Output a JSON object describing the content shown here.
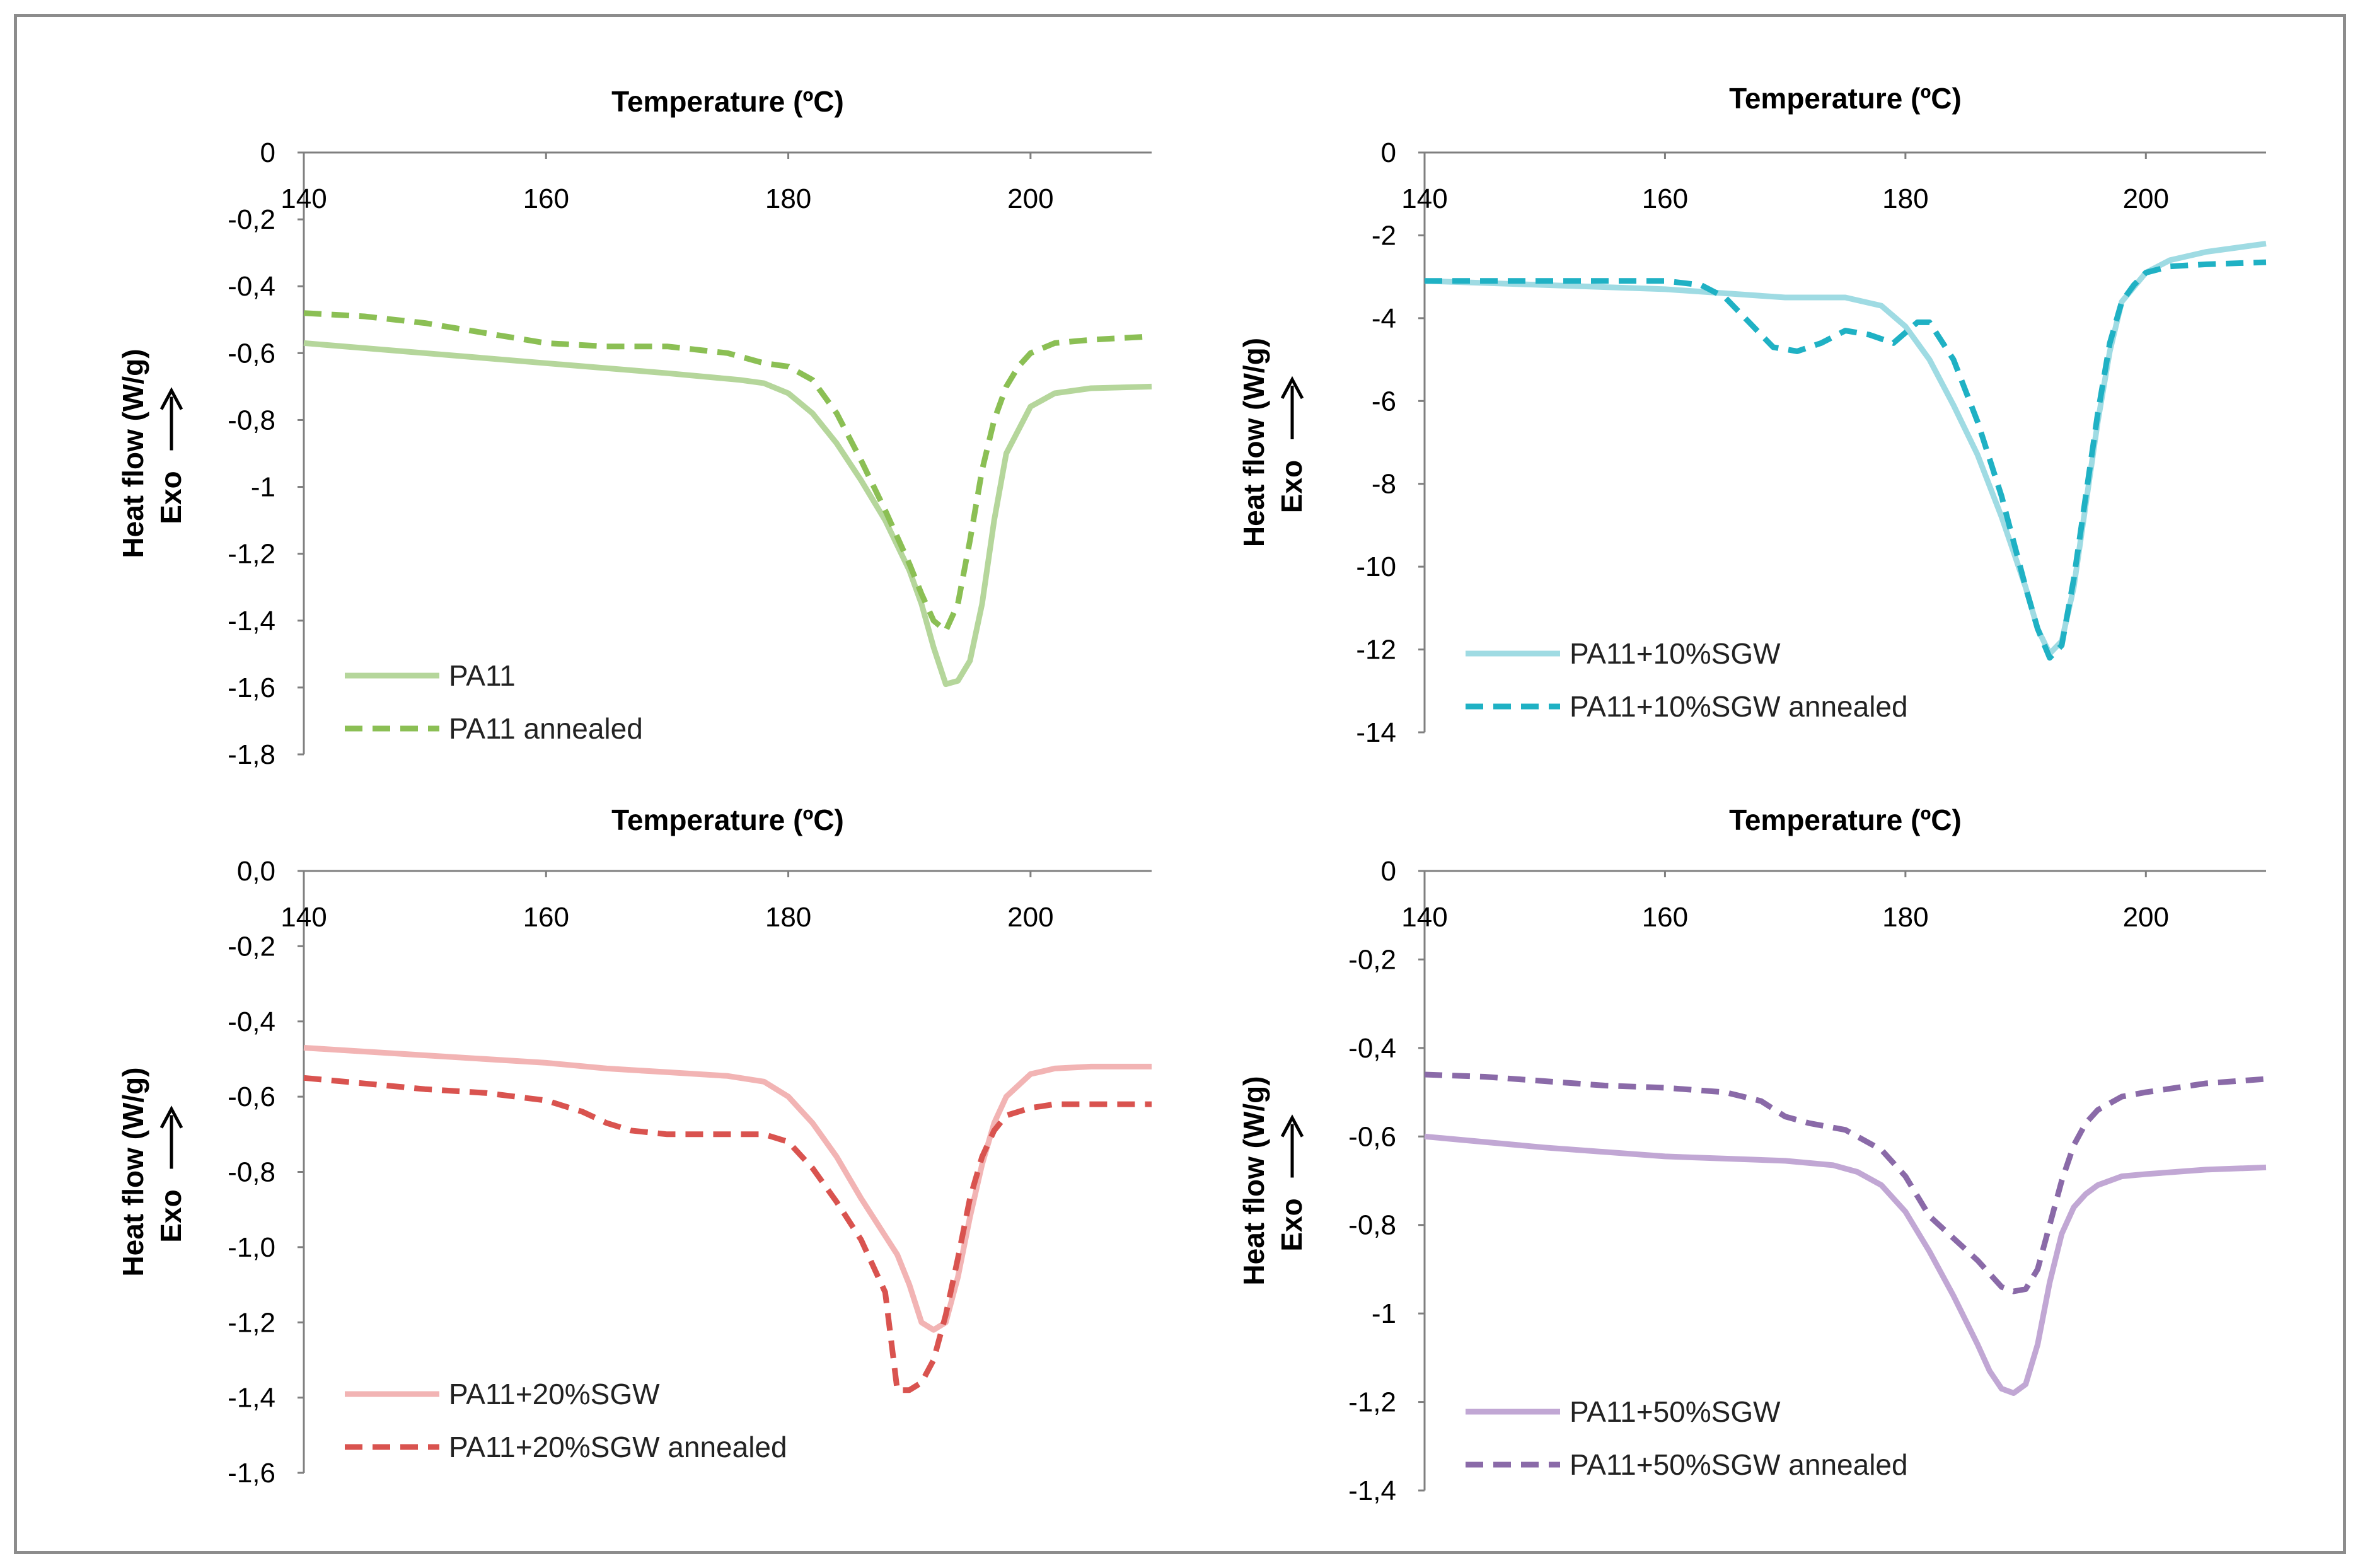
{
  "chart_data": [
    {
      "type": "line",
      "xlabel": "Temperature (ºC)",
      "ylabel": "Heat flow (W/g)",
      "ylabel_prefix": "Exo",
      "xlim": [
        140,
        210
      ],
      "ylim": [
        -1.8,
        0
      ],
      "xticks": [
        140,
        160,
        180,
        200
      ],
      "yticks": [
        0,
        -0.2,
        -0.4,
        -0.6,
        -0.8,
        -1,
        -1.2,
        -1.4,
        -1.6,
        -1.8
      ],
      "ytick_labels": [
        "0",
        "-0,2",
        "-0,4",
        "-0,6",
        "-0,8",
        "-1",
        "-1,2",
        "-1,4",
        "-1,6",
        "-1,8"
      ],
      "legend": "bottom-left",
      "series": [
        {
          "name": "PA11",
          "style": "solid",
          "color": "#b5d69b",
          "x": [
            140,
            150,
            160,
            170,
            176,
            178,
            180,
            182,
            184,
            186,
            188,
            190,
            191,
            192,
            193,
            194,
            195,
            196,
            197,
            198,
            200,
            202,
            205,
            210
          ],
          "y": [
            -0.57,
            -0.6,
            -0.63,
            -0.66,
            -0.68,
            -0.69,
            -0.72,
            -0.78,
            -0.87,
            -0.98,
            -1.1,
            -1.25,
            -1.35,
            -1.48,
            -1.59,
            -1.58,
            -1.52,
            -1.35,
            -1.1,
            -0.9,
            -0.76,
            -0.72,
            -0.705,
            -0.7
          ]
        },
        {
          "name": "PA11 annealed",
          "style": "dashed",
          "color": "#8bbf54",
          "x": [
            140,
            145,
            150,
            155,
            160,
            165,
            170,
            175,
            178,
            180,
            182,
            184,
            186,
            188,
            190,
            191,
            192,
            193,
            194,
            195,
            196,
            197,
            198,
            199,
            200,
            202,
            205,
            210
          ],
          "y": [
            -0.48,
            -0.49,
            -0.51,
            -0.54,
            -0.57,
            -0.58,
            -0.58,
            -0.6,
            -0.63,
            -0.64,
            -0.68,
            -0.78,
            -0.92,
            -1.07,
            -1.23,
            -1.32,
            -1.4,
            -1.43,
            -1.35,
            -1.16,
            -0.95,
            -0.8,
            -0.7,
            -0.64,
            -0.6,
            -0.57,
            -0.56,
            -0.55
          ]
        }
      ]
    },
    {
      "type": "line",
      "xlabel": "Temperature (ºC)",
      "ylabel": "Heat flow (W/g)",
      "ylabel_prefix": "Exo",
      "xlim": [
        140,
        210
      ],
      "ylim": [
        -14,
        0
      ],
      "xticks": [
        140,
        160,
        180,
        200
      ],
      "yticks": [
        0,
        -2,
        -4,
        -6,
        -8,
        -10,
        -12,
        -14
      ],
      "ytick_labels": [
        "0",
        "-2",
        "-4",
        "-6",
        "-8",
        "-10",
        "-12",
        "-14"
      ],
      "legend": "bottom-left",
      "series": [
        {
          "name": "PA11+10%SGW",
          "style": "solid",
          "color": "#9fdbe3",
          "x": [
            140,
            150,
            160,
            165,
            170,
            175,
            178,
            180,
            182,
            184,
            186,
            188,
            190,
            191,
            192,
            193,
            194,
            195,
            196,
            197,
            198,
            200,
            202,
            205,
            210
          ],
          "y": [
            -3.1,
            -3.2,
            -3.3,
            -3.4,
            -3.5,
            -3.5,
            -3.7,
            -4.2,
            -5.0,
            -6.1,
            -7.3,
            -8.8,
            -10.5,
            -11.5,
            -12.1,
            -11.8,
            -10.5,
            -8.5,
            -6.5,
            -4.8,
            -3.6,
            -2.9,
            -2.6,
            -2.4,
            -2.2
          ]
        },
        {
          "name": "PA11+10%SGW annealed",
          "style": "dashed",
          "color": "#1fb1c4",
          "x": [
            140,
            145,
            150,
            155,
            160,
            163,
            165,
            167,
            169,
            171,
            173,
            175,
            177,
            179,
            181,
            182,
            184,
            186,
            188,
            190,
            191,
            192,
            193,
            194,
            195,
            196,
            197,
            198,
            199,
            200,
            202,
            205,
            210
          ],
          "y": [
            -3.1,
            -3.1,
            -3.1,
            -3.1,
            -3.1,
            -3.2,
            -3.5,
            -4.1,
            -4.7,
            -4.8,
            -4.6,
            -4.3,
            -4.4,
            -4.6,
            -4.1,
            -4.1,
            -5.0,
            -6.5,
            -8.3,
            -10.5,
            -11.5,
            -12.2,
            -11.9,
            -10.3,
            -8.3,
            -6.3,
            -4.6,
            -3.6,
            -3.2,
            -2.9,
            -2.75,
            -2.7,
            -2.65
          ]
        }
      ]
    },
    {
      "type": "line",
      "xlabel": "Temperature (ºC)",
      "ylabel": "Heat flow (W/g)",
      "ylabel_prefix": "Exo",
      "xlim": [
        140,
        210
      ],
      "ylim": [
        -1.6,
        0
      ],
      "xticks": [
        140,
        160,
        180,
        200
      ],
      "yticks": [
        0,
        -0.2,
        -0.4,
        -0.6,
        -0.8,
        -1.0,
        -1.2,
        -1.4,
        -1.6
      ],
      "ytick_labels": [
        "0,0",
        "-0,2",
        "-0,4",
        "-0,6",
        "-0,8",
        "-1,0",
        "-1,2",
        "-1,4",
        "-1,6"
      ],
      "legend": "bottom-left",
      "series": [
        {
          "name": "PA11+20%SGW",
          "style": "solid",
          "color": "#f2b4b4",
          "x": [
            140,
            150,
            160,
            165,
            170,
            175,
            178,
            180,
            182,
            184,
            186,
            188,
            189,
            190,
            191,
            192,
            193,
            194,
            195,
            196,
            197,
            198,
            200,
            202,
            205,
            210
          ],
          "y": [
            -0.47,
            -0.49,
            -0.51,
            -0.525,
            -0.535,
            -0.545,
            -0.56,
            -0.6,
            -0.67,
            -0.76,
            -0.87,
            -0.97,
            -1.02,
            -1.1,
            -1.2,
            -1.22,
            -1.2,
            -1.08,
            -0.92,
            -0.78,
            -0.67,
            -0.6,
            -0.54,
            -0.525,
            -0.52,
            -0.52
          ]
        },
        {
          "name": "PA11+20%SGW annealed",
          "style": "dashed",
          "color": "#d9534f",
          "x": [
            140,
            145,
            150,
            155,
            160,
            163,
            165,
            167,
            170,
            175,
            178,
            180,
            182,
            184,
            186,
            188,
            189,
            190,
            191,
            192,
            193,
            194,
            195,
            196,
            197,
            198,
            200,
            202,
            205,
            210
          ],
          "y": [
            -0.55,
            -0.565,
            -0.58,
            -0.59,
            -0.61,
            -0.64,
            -0.67,
            -0.69,
            -0.7,
            -0.7,
            -0.7,
            -0.72,
            -0.79,
            -0.88,
            -0.98,
            -1.12,
            -1.38,
            -1.38,
            -1.36,
            -1.3,
            -1.18,
            -1.03,
            -0.87,
            -0.76,
            -0.69,
            -0.65,
            -0.63,
            -0.62,
            -0.62,
            -0.62
          ]
        }
      ]
    },
    {
      "type": "line",
      "xlabel": "Temperature (ºC)",
      "ylabel": "Heat flow (W/g)",
      "ylabel_prefix": "Exo",
      "xlim": [
        140,
        210
      ],
      "ylim": [
        -1.4,
        0
      ],
      "xticks": [
        140,
        160,
        180,
        200
      ],
      "yticks": [
        0,
        -0.2,
        -0.4,
        -0.6,
        -0.8,
        -1,
        -1.2,
        -1.4
      ],
      "ytick_labels": [
        "0",
        "-0,2",
        "-0,4",
        "-0,6",
        "-0,8",
        "-1",
        "-1,2",
        "-1,4"
      ],
      "legend": "bottom-left",
      "series": [
        {
          "name": "PA11+50%SGW",
          "style": "solid",
          "color": "#c1a7d4",
          "x": [
            140,
            150,
            160,
            165,
            170,
            174,
            176,
            178,
            180,
            182,
            184,
            186,
            187,
            188,
            189,
            190,
            191,
            192,
            193,
            194,
            195,
            196,
            198,
            200,
            205,
            210
          ],
          "y": [
            -0.6,
            -0.625,
            -0.645,
            -0.65,
            -0.655,
            -0.665,
            -0.68,
            -0.71,
            -0.77,
            -0.86,
            -0.96,
            -1.07,
            -1.13,
            -1.17,
            -1.18,
            -1.16,
            -1.07,
            -0.93,
            -0.82,
            -0.76,
            -0.73,
            -0.71,
            -0.69,
            -0.685,
            -0.675,
            -0.67
          ]
        },
        {
          "name": "PA11+50%SGW annealed",
          "style": "dashed",
          "color": "#8a6aa8",
          "x": [
            140,
            145,
            150,
            155,
            160,
            165,
            168,
            170,
            172,
            175,
            178,
            180,
            182,
            184,
            186,
            188,
            189,
            190,
            191,
            192,
            193,
            194,
            195,
            196,
            198,
            200,
            205,
            210
          ],
          "y": [
            -0.46,
            -0.465,
            -0.475,
            -0.485,
            -0.49,
            -0.5,
            -0.52,
            -0.555,
            -0.57,
            -0.585,
            -0.63,
            -0.69,
            -0.78,
            -0.83,
            -0.88,
            -0.94,
            -0.95,
            -0.945,
            -0.9,
            -0.8,
            -0.7,
            -0.62,
            -0.57,
            -0.54,
            -0.51,
            -0.5,
            -0.48,
            -0.47
          ]
        }
      ]
    }
  ]
}
